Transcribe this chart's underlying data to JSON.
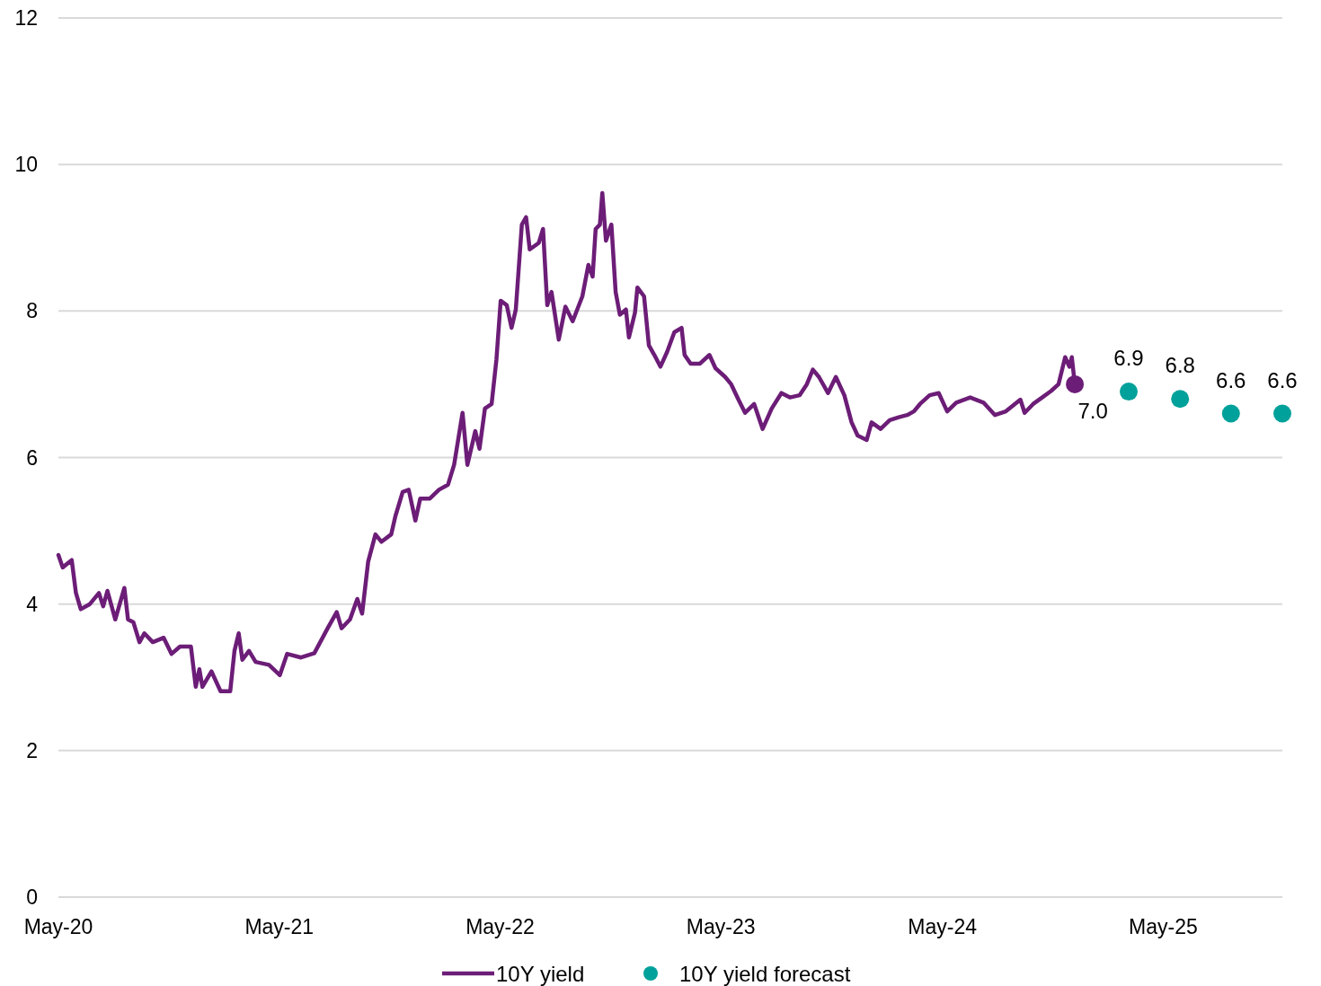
{
  "chart_data": {
    "type": "line",
    "ylim": [
      0,
      12
    ],
    "yticks": [
      0,
      2,
      4,
      6,
      8,
      10,
      12
    ],
    "xlim": [
      "2020-05-01",
      "2025-11-14"
    ],
    "xticks": [
      {
        "value": "2020-05-01",
        "label": "May-20"
      },
      {
        "value": "2021-05-01",
        "label": "May-21"
      },
      {
        "value": "2022-05-01",
        "label": "May-22"
      },
      {
        "value": "2023-05-01",
        "label": "May-23"
      },
      {
        "value": "2024-05-01",
        "label": "May-24"
      },
      {
        "value": "2025-05-01",
        "label": "May-25"
      }
    ],
    "grid": "y",
    "legend": "bottom",
    "series": [
      {
        "name": "10Y yield",
        "color": "#6c1d77",
        "marker": "none",
        "line_style": "solid",
        "x": [
          "2020-05-01",
          "2020-05-08",
          "2020-05-23",
          "2020-05-30",
          "2020-06-07",
          "2020-06-22",
          "2020-07-07",
          "2020-07-14",
          "2020-07-21",
          "2020-08-03",
          "2020-08-18",
          "2020-08-24",
          "2020-09-02",
          "2020-09-12",
          "2020-09-20",
          "2020-10-04",
          "2020-10-22",
          "2020-11-04",
          "2020-11-18",
          "2020-12-06",
          "2020-12-14",
          "2020-12-20",
          "2020-12-25",
          "2021-01-09",
          "2021-01-24",
          "2021-02-09",
          "2021-02-16",
          "2021-02-23",
          "2021-03-01",
          "2021-03-12",
          "2021-03-23",
          "2021-04-14",
          "2021-05-02",
          "2021-05-14",
          "2021-06-06",
          "2021-06-28",
          "2021-07-20",
          "2021-08-04",
          "2021-08-12",
          "2021-08-26",
          "2021-09-07",
          "2021-09-15",
          "2021-09-25",
          "2021-10-07",
          "2021-10-17",
          "2021-11-02",
          "2021-11-09",
          "2021-11-21",
          "2021-12-01",
          "2021-12-12",
          "2021-12-20",
          "2022-01-05",
          "2022-01-20",
          "2022-02-04",
          "2022-02-14",
          "2022-02-28",
          "2022-03-08",
          "2022-03-21",
          "2022-03-28",
          "2022-04-06",
          "2022-04-17",
          "2022-04-25",
          "2022-05-02",
          "2022-05-12",
          "2022-05-20",
          "2022-05-27",
          "2022-06-06",
          "2022-06-13",
          "2022-06-19",
          "2022-07-04",
          "2022-07-11",
          "2022-07-18",
          "2022-07-25",
          "2022-08-06",
          "2022-08-17",
          "2022-08-29",
          "2022-09-14",
          "2022-09-24",
          "2022-10-01",
          "2022-10-06",
          "2022-10-13",
          "2022-10-17",
          "2022-10-23",
          "2022-11-01",
          "2022-11-08",
          "2022-11-15",
          "2022-11-25",
          "2022-11-30",
          "2022-12-10",
          "2022-12-14",
          "2022-12-25",
          "2023-01-02",
          "2023-01-11",
          "2023-01-21",
          "2023-02-01",
          "2023-02-13",
          "2023-02-25",
          "2023-03-02",
          "2023-03-12",
          "2023-03-27",
          "2023-04-12",
          "2023-04-22",
          "2023-05-08",
          "2023-05-18",
          "2023-05-30",
          "2023-06-10",
          "2023-06-25",
          "2023-07-09",
          "2023-07-24",
          "2023-08-09",
          "2023-08-23",
          "2023-09-08",
          "2023-09-20",
          "2023-09-30",
          "2023-10-10",
          "2023-10-25",
          "2023-11-07",
          "2023-11-21",
          "2023-12-03",
          "2023-12-13",
          "2023-12-28",
          "2024-01-05",
          "2024-01-20",
          "2024-02-04",
          "2024-02-19",
          "2024-03-04",
          "2024-03-15",
          "2024-03-25",
          "2024-04-10",
          "2024-04-25",
          "2024-05-09",
          "2024-05-24",
          "2024-06-16",
          "2024-07-08",
          "2024-07-27",
          "2024-08-14",
          "2024-09-07",
          "2024-09-14",
          "2024-09-28",
          "2024-10-13",
          "2024-10-28",
          "2024-11-09",
          "2024-11-20",
          "2024-11-27",
          "2024-12-01",
          "2024-12-06"
        ],
        "values": [
          4.67,
          4.5,
          4.6,
          4.15,
          3.93,
          4.0,
          4.15,
          3.97,
          4.18,
          3.79,
          4.22,
          3.79,
          3.75,
          3.48,
          3.6,
          3.48,
          3.54,
          3.32,
          3.42,
          3.42,
          2.87,
          3.11,
          2.87,
          3.08,
          2.81,
          2.81,
          3.36,
          3.6,
          3.24,
          3.36,
          3.21,
          3.17,
          3.03,
          3.32,
          3.27,
          3.33,
          3.67,
          3.89,
          3.67,
          3.79,
          4.07,
          3.87,
          4.58,
          4.95,
          4.85,
          4.95,
          5.2,
          5.53,
          5.56,
          5.14,
          5.44,
          5.44,
          5.56,
          5.63,
          5.9,
          6.61,
          5.9,
          6.36,
          6.12,
          6.67,
          6.73,
          7.34,
          8.14,
          8.08,
          7.77,
          8.02,
          9.18,
          9.28,
          8.84,
          8.93,
          9.12,
          8.08,
          8.26,
          7.61,
          8.06,
          7.86,
          8.2,
          8.63,
          8.47,
          9.12,
          9.18,
          9.61,
          8.96,
          9.18,
          8.26,
          7.95,
          8.02,
          7.64,
          7.98,
          8.32,
          8.2,
          7.53,
          7.4,
          7.24,
          7.44,
          7.71,
          7.77,
          7.4,
          7.28,
          7.28,
          7.4,
          7.22,
          7.1,
          7.0,
          6.79,
          6.61,
          6.73,
          6.39,
          6.67,
          6.88,
          6.82,
          6.85,
          7.0,
          7.2,
          7.1,
          6.88,
          7.1,
          6.85,
          6.48,
          6.3,
          6.24,
          6.48,
          6.39,
          6.51,
          6.55,
          6.58,
          6.63,
          6.73,
          6.85,
          6.88,
          6.63,
          6.75,
          6.82,
          6.75,
          6.58,
          6.63,
          6.79,
          6.61,
          6.73,
          6.82,
          6.91,
          7.0,
          7.37,
          7.24,
          7.37,
          7.0
        ],
        "value_labels": [
          null,
          null,
          null,
          null,
          null,
          null,
          null,
          null,
          null,
          null,
          null,
          null,
          null,
          null,
          null,
          null,
          null,
          null,
          null,
          null,
          null,
          null,
          null,
          null,
          null,
          null,
          null,
          null,
          null,
          null,
          null,
          null,
          null,
          null,
          null,
          null,
          null,
          null,
          null,
          null,
          null,
          null,
          null,
          null,
          null,
          null,
          null,
          null,
          null,
          null,
          null,
          null,
          null,
          null,
          null,
          null,
          null,
          null,
          null,
          null,
          null,
          null,
          null,
          null,
          null,
          null,
          null,
          null,
          null,
          null,
          null,
          null,
          null,
          null,
          null,
          null,
          null,
          null,
          null,
          null,
          null,
          null,
          null,
          null,
          null,
          null,
          null,
          null,
          null,
          null,
          null,
          null,
          null,
          null,
          null,
          null,
          null,
          null,
          null,
          null,
          null,
          null,
          null,
          null,
          null,
          null,
          null,
          null,
          null,
          null,
          null,
          null,
          null,
          null,
          null,
          null,
          null,
          null,
          null,
          null,
          null,
          null,
          null,
          null,
          null,
          null,
          null,
          null,
          null,
          null,
          null,
          null,
          null,
          null,
          null,
          null,
          null,
          null,
          null,
          null,
          null,
          null,
          null,
          null,
          null,
          "7.0"
        ]
      },
      {
        "name": "10Y yield forecast",
        "type": "scatter",
        "color": "#00a19a",
        "marker": "circle",
        "x": [
          "2025-03-05",
          "2025-05-29",
          "2025-08-21",
          "2025-11-14"
        ],
        "values": [
          6.9,
          6.8,
          6.6,
          6.6
        ],
        "value_labels": [
          "6.9",
          "6.8",
          "6.6",
          "6.6"
        ]
      }
    ]
  }
}
